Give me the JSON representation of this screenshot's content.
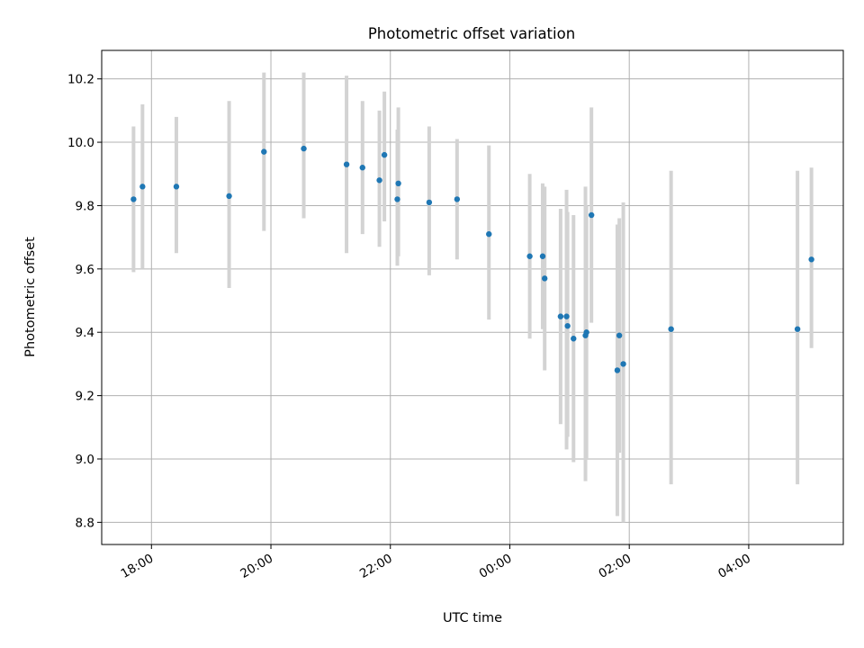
{
  "chart_data": {
    "type": "scatter",
    "title": "Photometric offset variation",
    "xlabel": "UTC time",
    "ylabel": "Photometric offset",
    "x_axis_kind": "time",
    "xlim": [
      "17:10",
      "05:35+1"
    ],
    "ylim": [
      8.73,
      10.29
    ],
    "grid": true,
    "marker_color": "#1f77b4",
    "errorbar_color": "#d3d3d3",
    "x_ticks": [
      {
        "time": "18:00",
        "label": "18:00"
      },
      {
        "time": "20:00",
        "label": "20:00"
      },
      {
        "time": "22:00",
        "label": "22:00"
      },
      {
        "time": "00:00+1",
        "label": "00:00"
      },
      {
        "time": "02:00+1",
        "label": "02:00"
      },
      {
        "time": "04:00+1",
        "label": "04:00"
      }
    ],
    "y_ticks": [
      {
        "value": 8.8,
        "label": "8.8"
      },
      {
        "value": 9.0,
        "label": "9.0"
      },
      {
        "value": 9.2,
        "label": "9.2"
      },
      {
        "value": 9.4,
        "label": "9.4"
      },
      {
        "value": 9.6,
        "label": "9.6"
      },
      {
        "value": 9.8,
        "label": "9.8"
      },
      {
        "value": 10.0,
        "label": "10.0"
      },
      {
        "value": 10.2,
        "label": "10.2"
      }
    ],
    "points": [
      {
        "t": "17:42",
        "y": 9.82,
        "lo": 9.59,
        "hi": 10.05
      },
      {
        "t": "17:51",
        "y": 9.86,
        "lo": 9.6,
        "hi": 10.12
      },
      {
        "t": "18:25",
        "y": 9.86,
        "lo": 9.65,
        "hi": 10.08
      },
      {
        "t": "19:18",
        "y": 9.83,
        "lo": 9.54,
        "hi": 10.13
      },
      {
        "t": "19:53",
        "y": 9.97,
        "lo": 9.72,
        "hi": 10.22
      },
      {
        "t": "20:33",
        "y": 9.98,
        "lo": 9.76,
        "hi": 10.22
      },
      {
        "t": "21:16",
        "y": 9.93,
        "lo": 9.65,
        "hi": 10.21
      },
      {
        "t": "21:32",
        "y": 9.92,
        "lo": 9.71,
        "hi": 10.13
      },
      {
        "t": "21:49",
        "y": 9.88,
        "lo": 9.67,
        "hi": 10.1
      },
      {
        "t": "21:54",
        "y": 9.96,
        "lo": 9.75,
        "hi": 10.16
      },
      {
        "t": "22:07",
        "y": 9.82,
        "lo": 9.61,
        "hi": 10.04
      },
      {
        "t": "22:08",
        "y": 9.87,
        "lo": 9.64,
        "hi": 10.11
      },
      {
        "t": "22:39",
        "y": 9.81,
        "lo": 9.58,
        "hi": 10.05
      },
      {
        "t": "23:07",
        "y": 9.82,
        "lo": 9.63,
        "hi": 10.01
      },
      {
        "t": "23:39",
        "y": 9.71,
        "lo": 9.44,
        "hi": 9.99
      },
      {
        "t": "00:20+1",
        "y": 9.64,
        "lo": 9.38,
        "hi": 9.9
      },
      {
        "t": "00:33+1",
        "y": 9.64,
        "lo": 9.41,
        "hi": 9.87
      },
      {
        "t": "00:35+1",
        "y": 9.57,
        "lo": 9.28,
        "hi": 9.86
      },
      {
        "t": "00:51+1",
        "y": 9.45,
        "lo": 9.11,
        "hi": 9.79
      },
      {
        "t": "00:57+1",
        "y": 9.45,
        "lo": 9.03,
        "hi": 9.85
      },
      {
        "t": "00:58+1",
        "y": 9.42,
        "lo": 9.07,
        "hi": 9.78
      },
      {
        "t": "01:04+1",
        "y": 9.38,
        "lo": 8.99,
        "hi": 9.77
      },
      {
        "t": "01:16+1",
        "y": 9.39,
        "lo": 8.93,
        "hi": 9.86
      },
      {
        "t": "01:17+1",
        "y": 9.4,
        "lo": 9.0,
        "hi": 9.8
      },
      {
        "t": "01:22+1",
        "y": 9.77,
        "lo": 9.43,
        "hi": 10.11
      },
      {
        "t": "01:48+1",
        "y": 9.28,
        "lo": 8.82,
        "hi": 9.74
      },
      {
        "t": "01:50+1",
        "y": 9.39,
        "lo": 9.02,
        "hi": 9.76
      },
      {
        "t": "01:54+1",
        "y": 9.3,
        "lo": 8.8,
        "hi": 9.81
      },
      {
        "t": "02:42+1",
        "y": 9.41,
        "lo": 8.92,
        "hi": 9.91
      },
      {
        "t": "04:49+1",
        "y": 9.41,
        "lo": 8.92,
        "hi": 9.91
      },
      {
        "t": "05:03+1",
        "y": 9.63,
        "lo": 9.35,
        "hi": 9.92
      }
    ]
  }
}
